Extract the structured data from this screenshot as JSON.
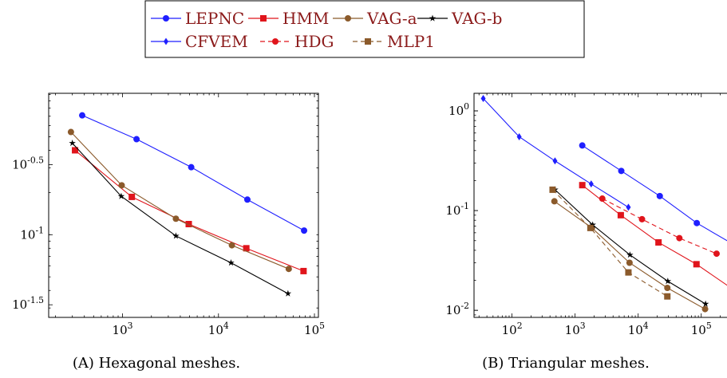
{
  "legend": {
    "entries": [
      {
        "label": "LEPNC",
        "color": "#1f1fff",
        "marker": "circle",
        "dash": "solid"
      },
      {
        "label": "HMM",
        "color": "#e0141b",
        "marker": "square",
        "dash": "solid"
      },
      {
        "label": "VAG-a",
        "color": "#8b5a2b",
        "marker": "circle",
        "dash": "solid"
      },
      {
        "label": "VAG-b",
        "color": "#000000",
        "marker": "star",
        "dash": "solid"
      },
      {
        "label": "CFVEM",
        "color": "#1f1fff",
        "marker": "diamond",
        "dash": "solid"
      },
      {
        "label": "HDG",
        "color": "#e0141b",
        "marker": "circle",
        "dash": "dashed"
      },
      {
        "label": "MLP1",
        "color": "#8b5a2b",
        "marker": "square",
        "dash": "dashed"
      }
    ]
  },
  "chart_data": [
    {
      "type": "line",
      "caption": "(A) Hexagonal meshes.",
      "xscale": "log",
      "yscale": "log",
      "xlim": [
        170,
        110000
      ],
      "ylim": [
        0.0257,
        1.02
      ],
      "xticks": [
        {
          "value": 1000,
          "label": "10^3"
        },
        {
          "value": 10000,
          "label": "10^4"
        },
        {
          "value": 100000,
          "label": "10^5"
        }
      ],
      "yticks": [
        {
          "value": 0.3162,
          "label": "10^-0.5"
        },
        {
          "value": 0.1,
          "label": "10^-1"
        },
        {
          "value": 0.03162,
          "label": "10^-1.5"
        }
      ],
      "grid": false,
      "series": [
        {
          "name": "LEPNC",
          "x": [
            380,
            1400,
            5200,
            20000,
            78000
          ],
          "y": [
            0.71,
            0.48,
            0.303,
            0.178,
            0.107
          ]
        },
        {
          "name": "HMM",
          "x": [
            320,
            1250,
            4900,
            19500,
            77000
          ],
          "y": [
            0.4,
            0.186,
            0.119,
            0.08,
            0.055
          ]
        },
        {
          "name": "VAG-a",
          "x": [
            290,
            980,
            3600,
            13800,
            54000
          ],
          "y": [
            0.54,
            0.225,
            0.13,
            0.084,
            0.057
          ]
        },
        {
          "name": "VAG-b",
          "x": [
            300,
            970,
            3600,
            13500,
            53000
          ],
          "y": [
            0.45,
            0.188,
            0.098,
            0.063,
            0.038
          ]
        }
      ]
    },
    {
      "type": "line",
      "caption": "(B) Triangular meshes.",
      "xscale": "log",
      "yscale": "log",
      "xlim": [
        25,
        500000
      ],
      "ylim": [
        0.0085,
        1.5
      ],
      "xticks": [
        {
          "value": 100,
          "label": "10^2"
        },
        {
          "value": 1000,
          "label": "10^3"
        },
        {
          "value": 10000,
          "label": "10^4"
        },
        {
          "value": 100000,
          "label": "10^5"
        }
      ],
      "yticks": [
        {
          "value": 1,
          "label": "10^0"
        },
        {
          "value": 0.1,
          "label": "10^-1"
        },
        {
          "value": 0.01,
          "label": "10^-2"
        }
      ],
      "grid": false,
      "series": [
        {
          "name": "CFVEM",
          "x": [
            35,
            130,
            480,
            1800,
            7000
          ],
          "y": [
            1.33,
            0.55,
            0.315,
            0.185,
            0.108
          ]
        },
        {
          "name": "LEPNC",
          "x": [
            1300,
            5400,
            22000,
            85000,
            340000
          ],
          "y": [
            0.45,
            0.25,
            0.14,
            0.075,
            0.045
          ]
        },
        {
          "name": "HMM",
          "x": [
            1300,
            5300,
            21000,
            84000,
            340000
          ],
          "y": [
            0.18,
            0.09,
            0.048,
            0.029,
            0.0158
          ]
        },
        {
          "name": "HDG",
          "x": [
            2700,
            11500,
            45000,
            175000
          ],
          "y": [
            0.132,
            0.082,
            0.053,
            0.037
          ]
        },
        {
          "name": "VAG-a",
          "x": [
            470,
            1850,
            7300,
            29000,
            115000
          ],
          "y": [
            0.124,
            0.067,
            0.03,
            0.0168,
            0.0103
          ]
        },
        {
          "name": "VAG-b",
          "x": [
            480,
            1900,
            7400,
            29500,
            117000
          ],
          "y": [
            0.162,
            0.072,
            0.036,
            0.0196,
            0.0116
          ]
        },
        {
          "name": "MLP1",
          "x": [
            440,
            1750,
            7000,
            29000
          ],
          "y": [
            0.162,
            0.067,
            0.024,
            0.0138
          ]
        }
      ]
    }
  ]
}
